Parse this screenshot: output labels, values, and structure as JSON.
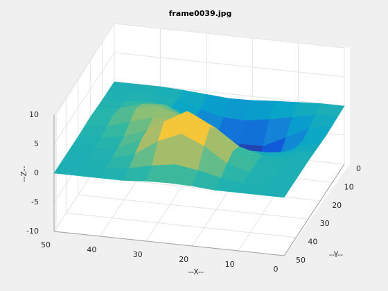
{
  "chart_data": {
    "type": "surface",
    "title": "frame0039.jpg",
    "x_label": "--X--",
    "y_label": "--Y--",
    "z_label": "--Z--",
    "x": [
      0,
      5,
      10,
      15,
      20,
      25,
      30,
      35,
      40,
      45,
      50
    ],
    "y": [
      0,
      5,
      10,
      15,
      20,
      25,
      30,
      35,
      40,
      45,
      50
    ],
    "z": [
      [
        0,
        0,
        -0.2,
        -0.4,
        -0.7,
        -0.8,
        -0.5,
        -0.2,
        0,
        0,
        0
      ],
      [
        -0.1,
        -0.4,
        -1.2,
        -2.0,
        -2.6,
        -2.5,
        -1.5,
        -0.4,
        0,
        0,
        0
      ],
      [
        -0.2,
        -1.1,
        -3.1,
        -5.0,
        -5.1,
        -3.9,
        -1.7,
        0.1,
        0.5,
        0.2,
        0
      ],
      [
        -0.3,
        -1.5,
        -4.4,
        -6.5,
        -5.7,
        -3.0,
        0,
        2.0,
        1.7,
        0.6,
        0.1
      ],
      [
        -0.2,
        -1.1,
        -3.0,
        -4.4,
        -3.1,
        -0.6,
        2.0,
        3.3,
        2.5,
        0.9,
        0.2
      ],
      [
        -0.1,
        -0.4,
        -1.0,
        -1.0,
        0.4,
        2.1,
        3.0,
        3.0,
        1.8,
        0.6,
        0.1
      ],
      [
        0,
        0,
        0.1,
        1.2,
        3.9,
        5.9,
        4.6,
        2.3,
        0.9,
        0.2,
        0
      ],
      [
        0,
        0,
        0.4,
        2.0,
        5.7,
        8.0,
        5.8,
        2.2,
        0.5,
        0,
        0
      ],
      [
        0,
        0,
        0.3,
        1.4,
        4.0,
        5.7,
        4.0,
        1.4,
        0.3,
        0,
        0
      ],
      [
        0,
        0,
        0.1,
        0.5,
        1.4,
        2.0,
        1.4,
        0.5,
        0.1,
        0,
        0
      ],
      [
        0,
        0,
        0,
        0,
        0.3,
        0.4,
        0.3,
        0,
        0,
        0,
        0
      ]
    ],
    "xlim": [
      0,
      50
    ],
    "ylim": [
      0,
      50
    ],
    "zlim": [
      -10,
      10
    ],
    "xticks": [
      0,
      10,
      20,
      30,
      40,
      50
    ],
    "yticks": [
      0,
      10,
      20,
      30,
      40,
      50
    ],
    "zticks": [
      -10,
      -5,
      0,
      5,
      10
    ],
    "grid": true,
    "colormap": "parula"
  }
}
